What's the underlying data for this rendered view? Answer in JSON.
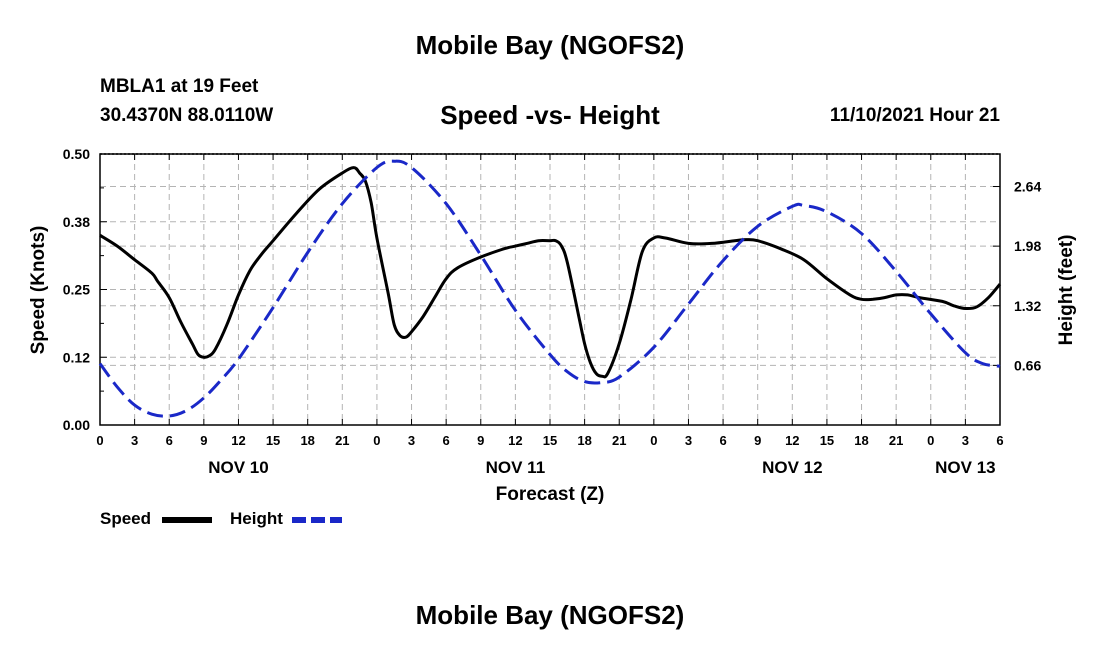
{
  "header": {
    "title": "Mobile Bay (NGOFS2)",
    "station": "MBLA1 at 19 Feet",
    "coords": "30.4370N  88.0110W",
    "subtitle": "Speed -vs- Height",
    "timestamp": "11/10/2021 Hour 21"
  },
  "footer": {
    "title": "Mobile Bay (NGOFS2)"
  },
  "chart_data": {
    "type": "line",
    "xlabel": "Forecast (Z)",
    "ylabel_left": "Speed (Knots)",
    "ylabel_right": "Height (feet)",
    "xlim": [
      0,
      78
    ],
    "ylim_left": [
      0,
      0.5
    ],
    "ylim_right": [
      0,
      3.0
    ],
    "x_ticks": [
      0,
      3,
      6,
      9,
      12,
      15,
      18,
      21,
      24,
      27,
      30,
      33,
      36,
      39,
      42,
      45,
      48,
      51,
      54,
      57,
      60,
      63,
      66,
      69,
      72,
      75,
      78
    ],
    "x_tick_labels": [
      "0",
      "3",
      "6",
      "9",
      "12",
      "15",
      "18",
      "21",
      "0",
      "3",
      "6",
      "9",
      "12",
      "15",
      "18",
      "21",
      "0",
      "3",
      "6",
      "9",
      "12",
      "15",
      "18",
      "21",
      "0",
      "3",
      "6"
    ],
    "day_labels": [
      {
        "x": 12,
        "label": "NOV 10"
      },
      {
        "x": 36,
        "label": "NOV 11"
      },
      {
        "x": 60,
        "label": "NOV 12"
      },
      {
        "x": 75,
        "label": "NOV 13"
      }
    ],
    "y_left_ticks": [
      0.0,
      0.125,
      0.25,
      0.375,
      0.5
    ],
    "y_left_tick_labels": [
      "0.00",
      "0.12",
      "0.25",
      "0.38",
      "0.50"
    ],
    "y_right_ticks": [
      0.66,
      1.32,
      1.98,
      2.64
    ],
    "y_right_tick_labels": [
      "0.66",
      "1.32",
      "1.98",
      "2.64"
    ],
    "grid": true,
    "series": [
      {
        "name": "Speed",
        "axis": "left",
        "color": "#000000",
        "dash": "solid",
        "points": [
          [
            0,
            0.35
          ],
          [
            1.5,
            0.33
          ],
          [
            3,
            0.305
          ],
          [
            4.5,
            0.28
          ],
          [
            5,
            0.265
          ],
          [
            6,
            0.235
          ],
          [
            7,
            0.19
          ],
          [
            8,
            0.15
          ],
          [
            8.5,
            0.13
          ],
          [
            9,
            0.125
          ],
          [
            9.5,
            0.128
          ],
          [
            10,
            0.14
          ],
          [
            11,
            0.185
          ],
          [
            12,
            0.24
          ],
          [
            13,
            0.285
          ],
          [
            14,
            0.315
          ],
          [
            15,
            0.34
          ],
          [
            17,
            0.39
          ],
          [
            19,
            0.435
          ],
          [
            21,
            0.465
          ],
          [
            22,
            0.475
          ],
          [
            22.5,
            0.465
          ],
          [
            23,
            0.45
          ],
          [
            23.5,
            0.41
          ],
          [
            24,
            0.345
          ],
          [
            25,
            0.24
          ],
          [
            25.5,
            0.185
          ],
          [
            26,
            0.165
          ],
          [
            26.5,
            0.162
          ],
          [
            27,
            0.172
          ],
          [
            28,
            0.2
          ],
          [
            29,
            0.235
          ],
          [
            30,
            0.27
          ],
          [
            31,
            0.29
          ],
          [
            33,
            0.31
          ],
          [
            35,
            0.325
          ],
          [
            36,
            0.33
          ],
          [
            37,
            0.335
          ],
          [
            38,
            0.34
          ],
          [
            39,
            0.34
          ],
          [
            39.5,
            0.34
          ],
          [
            40,
            0.33
          ],
          [
            40.5,
            0.3
          ],
          [
            41.5,
            0.2
          ],
          [
            42,
            0.15
          ],
          [
            42.5,
            0.115
          ],
          [
            43,
            0.095
          ],
          [
            43.5,
            0.09
          ],
          [
            44,
            0.095
          ],
          [
            45,
            0.15
          ],
          [
            46,
            0.23
          ],
          [
            47,
            0.32
          ],
          [
            48,
            0.345
          ],
          [
            49,
            0.345
          ],
          [
            51,
            0.335
          ],
          [
            53,
            0.335
          ],
          [
            55,
            0.34
          ],
          [
            56,
            0.342
          ],
          [
            57,
            0.34
          ],
          [
            59,
            0.325
          ],
          [
            61,
            0.305
          ],
          [
            63,
            0.27
          ],
          [
            65,
            0.24
          ],
          [
            66,
            0.232
          ],
          [
            67,
            0.232
          ],
          [
            68,
            0.235
          ],
          [
            69,
            0.24
          ],
          [
            70,
            0.24
          ],
          [
            71,
            0.235
          ],
          [
            73,
            0.228
          ],
          [
            74,
            0.22
          ],
          [
            75,
            0.215
          ],
          [
            76,
            0.218
          ],
          [
            77,
            0.235
          ],
          [
            78,
            0.26
          ]
        ]
      },
      {
        "name": "Height",
        "axis": "right",
        "color": "#1a28c8",
        "dash": "dashed",
        "points": [
          [
            0,
            0.68
          ],
          [
            1.5,
            0.42
          ],
          [
            3,
            0.22
          ],
          [
            4.5,
            0.12
          ],
          [
            6,
            0.1
          ],
          [
            7.5,
            0.16
          ],
          [
            9,
            0.3
          ],
          [
            10.5,
            0.5
          ],
          [
            12,
            0.73
          ],
          [
            15,
            1.3
          ],
          [
            18,
            1.91
          ],
          [
            21,
            2.45
          ],
          [
            24,
            2.85
          ],
          [
            25.5,
            2.92
          ],
          [
            27,
            2.85
          ],
          [
            30,
            2.45
          ],
          [
            33,
            1.88
          ],
          [
            36,
            1.27
          ],
          [
            39,
            0.78
          ],
          [
            40.5,
            0.59
          ],
          [
            42,
            0.48
          ],
          [
            43.5,
            0.47
          ],
          [
            45,
            0.53
          ],
          [
            48,
            0.86
          ],
          [
            51,
            1.34
          ],
          [
            54,
            1.82
          ],
          [
            57,
            2.2
          ],
          [
            60,
            2.42
          ],
          [
            61,
            2.43
          ],
          [
            63,
            2.36
          ],
          [
            66,
            2.12
          ],
          [
            69,
            1.7
          ],
          [
            72,
            1.23
          ],
          [
            75,
            0.8
          ],
          [
            76.5,
            0.68
          ],
          [
            78,
            0.65
          ]
        ]
      }
    ],
    "legend": [
      {
        "label": "Speed",
        "color": "#000000"
      },
      {
        "label": "Height",
        "color": "#1a28c8"
      }
    ]
  }
}
